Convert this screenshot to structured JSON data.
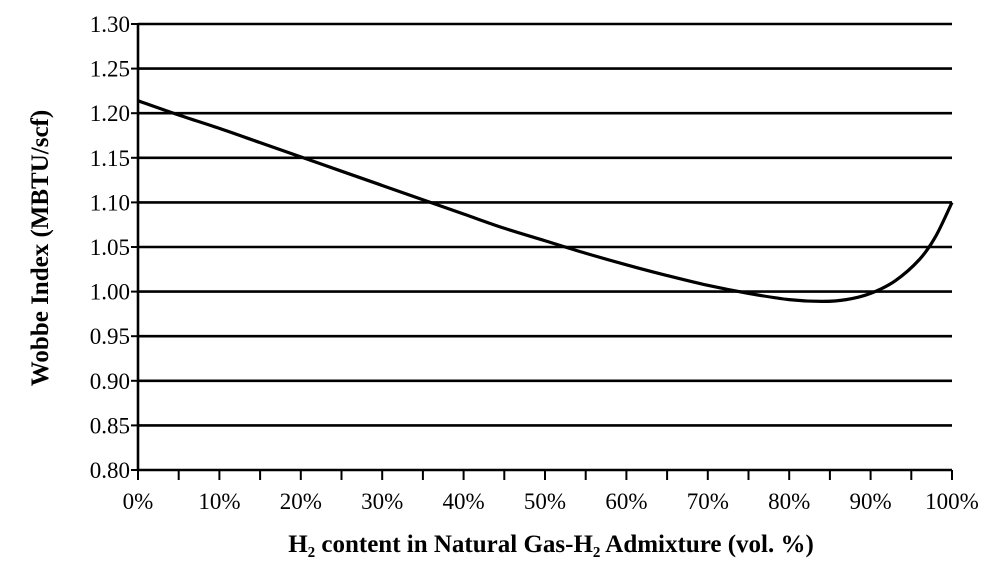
{
  "chart_data": {
    "type": "line",
    "title": "",
    "xlabel": "H₂ content in Natural Gas-H₂ Admixture (vol. %)",
    "ylabel": "Wobbe Index (MBTU/scf)",
    "xlim": [
      0,
      100
    ],
    "ylim": [
      0.8,
      1.3
    ],
    "grid": true,
    "legend": "none",
    "x_ticks": [
      "0%",
      "10%",
      "20%",
      "30%",
      "40%",
      "50%",
      "60%",
      "70%",
      "80%",
      "90%",
      "100%"
    ],
    "y_ticks": [
      "0.80",
      "0.85",
      "0.90",
      "0.95",
      "1.00",
      "1.05",
      "1.10",
      "1.15",
      "1.20",
      "1.25",
      "1.30"
    ],
    "series": [
      {
        "x": [
          0,
          5,
          10,
          15,
          20,
          25,
          30,
          35,
          40,
          45,
          50,
          55,
          60,
          65,
          70,
          75,
          80,
          84,
          87,
          90,
          93,
          96,
          98,
          100
        ],
        "y": [
          1.214,
          1.198,
          1.183,
          1.167,
          1.151,
          1.135,
          1.119,
          1.103,
          1.087,
          1.071,
          1.057,
          1.043,
          1.03,
          1.018,
          1.007,
          0.998,
          0.991,
          0.989,
          0.991,
          0.998,
          1.012,
          1.036,
          1.062,
          1.1
        ]
      }
    ]
  }
}
